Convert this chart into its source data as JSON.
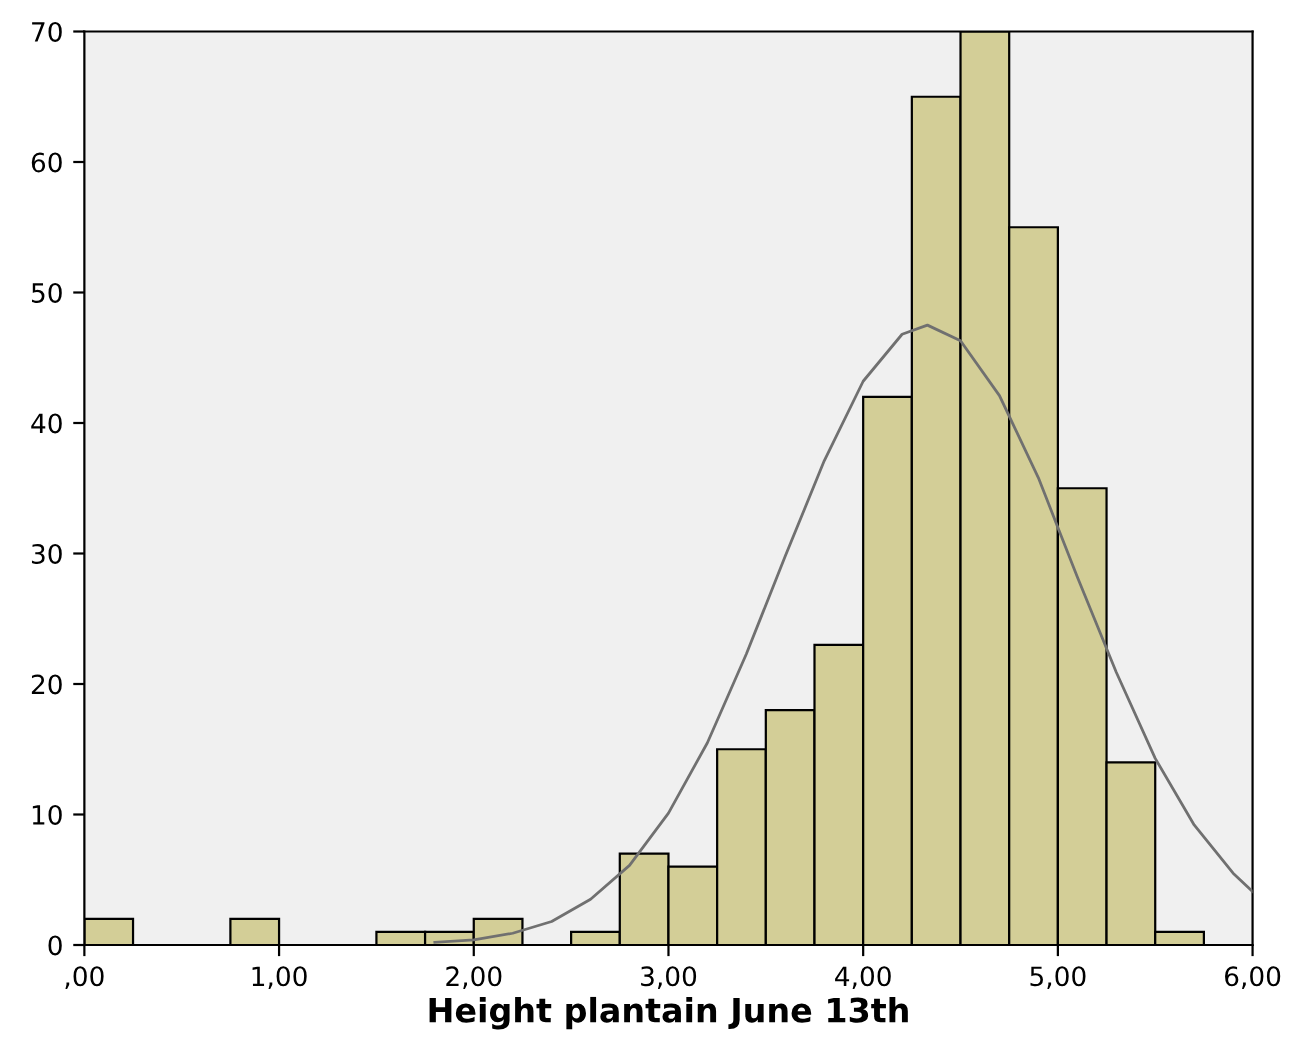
{
  "chart_data": {
    "type": "histogram",
    "xlabel": "Height plantain June 13th",
    "bins": [
      0,
      0.25,
      0.5,
      0.75,
      1.0,
      1.25,
      1.5,
      1.75,
      2.0,
      2.25,
      2.5,
      2.75,
      3.0,
      3.25,
      3.5,
      3.75,
      4.0,
      4.25,
      4.5,
      4.75,
      5.0,
      5.25,
      5.5,
      5.75,
      6.0
    ],
    "values": [
      2,
      0,
      0,
      2,
      0,
      0,
      1,
      1,
      2,
      0,
      1,
      7,
      6,
      15,
      18,
      23,
      42,
      65,
      70,
      55,
      35,
      14,
      1,
      0
    ],
    "color": "#d3ce97",
    "series": [
      {
        "type": "line",
        "color": "#707070",
        "x": [
          1.8,
          2.0,
          2.2,
          2.4,
          2.6,
          2.8,
          3.0,
          3.2,
          3.4,
          3.6,
          3.8,
          4.0,
          4.2,
          4.33,
          4.5,
          4.7,
          4.9,
          5.0,
          5.1,
          5.3,
          5.5,
          5.7,
          5.9,
          6.0
        ],
        "values": [
          0.2,
          0.4,
          0.9,
          1.8,
          3.5,
          6.1,
          10.1,
          15.5,
          22.3,
          29.8,
          37.1,
          43.2,
          46.8,
          47.5,
          46.3,
          42.1,
          35.8,
          32,
          28.2,
          20.9,
          14.3,
          9.2,
          5.5,
          4.1
        ]
      }
    ],
    "xlim": [
      0,
      6
    ],
    "ylim": [
      0,
      70
    ],
    "xticks": [
      {
        "value": 0,
        "label": ",00"
      },
      {
        "value": 1,
        "label": "1,00"
      },
      {
        "value": 2,
        "label": "2,00"
      },
      {
        "value": 3,
        "label": "3,00"
      },
      {
        "value": 4,
        "label": "4,00"
      },
      {
        "value": 5,
        "label": "5,00"
      },
      {
        "value": 6,
        "label": "6,00"
      }
    ],
    "yticks": [
      0,
      10,
      20,
      30,
      40,
      50,
      60,
      70
    ],
    "grid": false
  }
}
